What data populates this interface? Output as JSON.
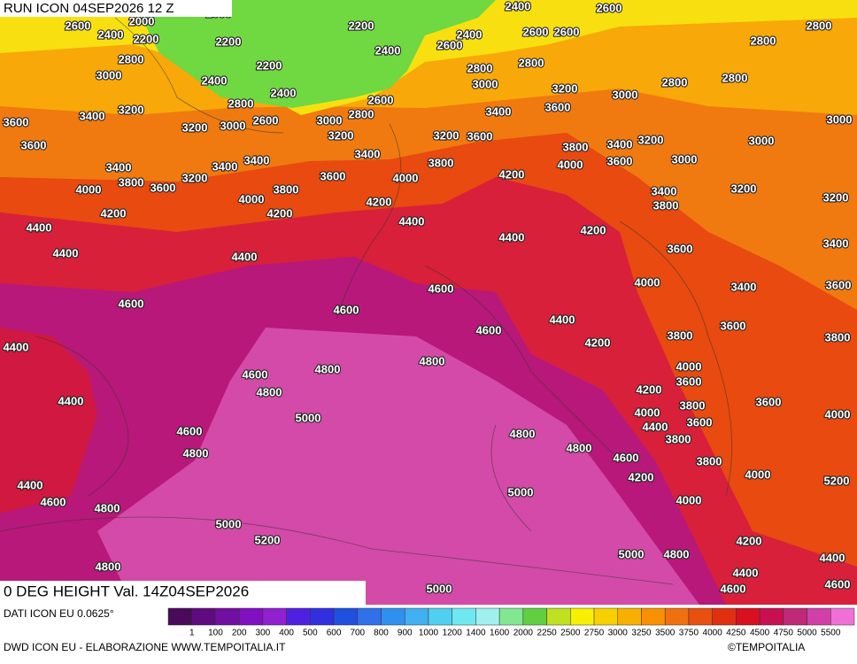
{
  "header": {
    "run": "RUN ICON 04SEP2026 12 Z",
    "title": "0 DEG HEIGHT Val. 14Z04SEP2026"
  },
  "legend": {
    "source": "DATI ICON EU 0.0625°",
    "colors": [
      "#4a0a5a",
      "#600a80",
      "#7010a0",
      "#8010c0",
      "#9020d0",
      "#5020e0",
      "#3030e0",
      "#2050e0",
      "#3070e8",
      "#3090f0",
      "#40b0f0",
      "#50d0f0",
      "#70e8f0",
      "#a0f0f0",
      "#80e890",
      "#60d040",
      "#c0e020",
      "#f8f000",
      "#f8d000",
      "#f8b000",
      "#f89000",
      "#f07010",
      "#e85010",
      "#e03010",
      "#d81020",
      "#c81050",
      "#c02878",
      "#d040a8",
      "#f070d8"
    ],
    "labels": [
      1,
      100,
      200,
      300,
      400,
      500,
      600,
      700,
      800,
      900,
      1000,
      1200,
      1400,
      1600,
      2000,
      2250,
      2500,
      2750,
      3000,
      3250,
      3500,
      3750,
      4000,
      4250,
      4500,
      4750,
      5000,
      5500
    ]
  },
  "footer": {
    "credit": "DWD ICON EU - ELABORAZIONE WWW.TEMPOITALIA.IT",
    "brand": "©TEMPOITALIA"
  },
  "contour_labels": [
    2400,
    2600,
    2000,
    2600,
    2400,
    2000,
    2200,
    2200,
    2400,
    2600,
    2600,
    2600,
    2800,
    2800,
    2800,
    2200,
    2200,
    2400,
    2800,
    2800,
    3000,
    2400,
    2400,
    3000,
    3200,
    3000,
    2800,
    2800,
    2800,
    2600,
    3400,
    3200,
    2600,
    3000,
    2800,
    3400,
    3600,
    3000,
    3600,
    3200,
    3000,
    3200,
    3200,
    3600,
    3200,
    3000,
    3600,
    3800,
    3400,
    3400,
    3400,
    3400,
    3400,
    4000,
    3600,
    3000,
    3800,
    3600,
    3200,
    3600,
    3800,
    4000,
    4200,
    4000,
    3800,
    4000,
    3400,
    3200,
    3200,
    4200,
    4200,
    4200,
    3800,
    4400,
    4400,
    4200,
    4400,
    3400,
    4400,
    4400,
    3600,
    4000,
    3400,
    3600,
    4600,
    4600,
    4600,
    4400,
    3800,
    3600,
    3800,
    4600,
    4200,
    4400,
    4800,
    4800,
    4000,
    4600,
    4800,
    3600,
    4200,
    3600,
    4400,
    3800,
    4000,
    4000,
    3600,
    4400,
    5000,
    4600,
    4800,
    3800,
    4800,
    4800,
    4600,
    3800,
    4000,
    4200,
    5200,
    4400,
    4600,
    5000,
    4000,
    4800,
    5000,
    5200,
    4200,
    5000,
    4800,
    4400,
    4800,
    4400,
    4600,
    4600,
    5000
  ]
}
